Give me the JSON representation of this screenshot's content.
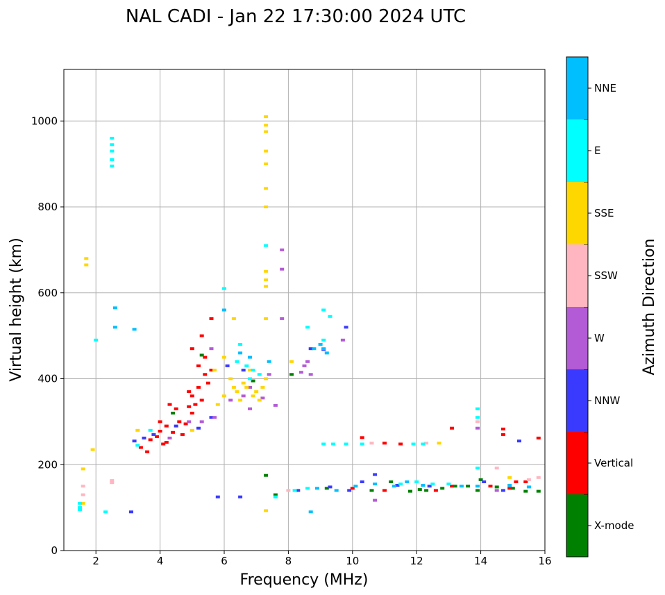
{
  "chart_data": {
    "type": "scatter",
    "title": "NAL CADI - Jan 22 17:30:00 2024 UTC",
    "xlabel": "Frequency (MHz)",
    "ylabel": "Virtual height (km)",
    "xlim": [
      1,
      16
    ],
    "ylim": [
      0,
      1120
    ],
    "xticks": [
      2,
      4,
      6,
      8,
      10,
      12,
      14,
      16
    ],
    "yticks": [
      0,
      200,
      400,
      600,
      800,
      1000
    ],
    "grid": true,
    "colorbar": {
      "label": "Azimuth Direction",
      "categories": [
        "X-mode",
        "Vertical",
        "NNW",
        "W",
        "SSW",
        "SSE",
        "E",
        "NNE"
      ],
      "colors": [
        "#008000",
        "#ff0000",
        "#3a3aff",
        "#b35ad6",
        "#ffb6c1",
        "#ffd700",
        "#00ffff",
        "#00bfff"
      ]
    },
    "series": [
      {
        "name": "X-mode",
        "points": [
          [
            7.6,
            130
          ],
          [
            9.2,
            145
          ],
          [
            10.6,
            140
          ],
          [
            11.2,
            160
          ],
          [
            11.8,
            138
          ],
          [
            12.3,
            140
          ],
          [
            12.8,
            145
          ],
          [
            13.2,
            150
          ],
          [
            13.6,
            150
          ],
          [
            14.0,
            165
          ],
          [
            14.5,
            148
          ],
          [
            15.0,
            145
          ],
          [
            15.4,
            138
          ],
          [
            15.8,
            138
          ],
          [
            7.3,
            175
          ],
          [
            8.1,
            410
          ],
          [
            6.9,
            395
          ],
          [
            5.3,
            455
          ],
          [
            4.4,
            320
          ],
          [
            12.1,
            142
          ],
          [
            13.9,
            140
          ]
        ]
      },
      {
        "name": "Vertical",
        "points": [
          [
            3.4,
            240
          ],
          [
            3.7,
            258
          ],
          [
            3.9,
            265
          ],
          [
            4.0,
            278
          ],
          [
            4.2,
            252
          ],
          [
            4.2,
            290
          ],
          [
            4.4,
            275
          ],
          [
            4.3,
            340
          ],
          [
            4.6,
            300
          ],
          [
            4.8,
            295
          ],
          [
            4.9,
            335
          ],
          [
            5.0,
            320
          ],
          [
            5.0,
            360
          ],
          [
            5.1,
            340
          ],
          [
            5.2,
            380
          ],
          [
            5.3,
            350
          ],
          [
            5.4,
            410
          ],
          [
            5.4,
            450
          ],
          [
            5.5,
            390
          ],
          [
            5.3,
            500
          ],
          [
            5.0,
            470
          ],
          [
            5.2,
            430
          ],
          [
            5.6,
            540
          ],
          [
            3.6,
            230
          ],
          [
            4.1,
            248
          ],
          [
            4.7,
            270
          ],
          [
            10.3,
            263
          ],
          [
            11.0,
            250
          ],
          [
            11.5,
            248
          ],
          [
            13.1,
            285
          ],
          [
            14.7,
            283
          ],
          [
            14.7,
            270
          ],
          [
            15.8,
            262
          ],
          [
            10.0,
            145
          ],
          [
            11.0,
            140
          ],
          [
            12.6,
            140
          ],
          [
            13.1,
            150
          ],
          [
            14.3,
            150
          ],
          [
            14.9,
            145
          ],
          [
            15.1,
            160
          ],
          [
            15.4,
            160
          ],
          [
            4.0,
            300
          ],
          [
            4.5,
            330
          ],
          [
            4.9,
            370
          ],
          [
            5.6,
            420
          ]
        ]
      },
      {
        "name": "NNW",
        "points": [
          [
            3.2,
            255
          ],
          [
            3.5,
            262
          ],
          [
            3.8,
            270
          ],
          [
            4.5,
            290
          ],
          [
            5.2,
            285
          ],
          [
            5.6,
            310
          ],
          [
            8.7,
            470
          ],
          [
            9.1,
            468
          ],
          [
            9.8,
            520
          ],
          [
            10.7,
            177
          ],
          [
            10.3,
            160
          ],
          [
            12.4,
            150
          ],
          [
            14.1,
            160
          ],
          [
            14.7,
            140
          ],
          [
            15.2,
            255
          ],
          [
            9.9,
            140
          ],
          [
            8.3,
            140
          ],
          [
            5.8,
            125
          ],
          [
            6.5,
            125
          ],
          [
            3.1,
            90
          ],
          [
            6.1,
            430
          ],
          [
            6.6,
            420
          ],
          [
            9.3,
            148
          ],
          [
            11.4,
            152
          ]
        ]
      },
      {
        "name": "W",
        "points": [
          [
            4.9,
            300
          ],
          [
            5.3,
            300
          ],
          [
            5.7,
            310
          ],
          [
            6.2,
            350
          ],
          [
            6.6,
            360
          ],
          [
            6.8,
            330
          ],
          [
            7.2,
            355
          ],
          [
            7.4,
            410
          ],
          [
            7.8,
            700
          ],
          [
            7.8,
            655
          ],
          [
            7.8,
            540
          ],
          [
            8.4,
            415
          ],
          [
            8.5,
            430
          ],
          [
            8.6,
            440
          ],
          [
            8.7,
            410
          ],
          [
            10.7,
            117
          ],
          [
            9.7,
            490
          ],
          [
            13.9,
            285
          ],
          [
            14.5,
            140
          ],
          [
            6.8,
            380
          ],
          [
            7.6,
            338
          ],
          [
            4.3,
            262
          ],
          [
            5.6,
            470
          ]
        ]
      },
      {
        "name": "SSW",
        "points": [
          [
            1.6,
            150
          ],
          [
            1.6,
            130
          ],
          [
            2.5,
            163
          ],
          [
            2.5,
            158
          ],
          [
            12.3,
            250
          ],
          [
            13.9,
            300
          ],
          [
            14.5,
            192
          ],
          [
            15.5,
            165
          ],
          [
            15.8,
            170
          ],
          [
            10.6,
            250
          ],
          [
            8.0,
            140
          ]
        ]
      },
      {
        "name": "SSE",
        "points": [
          [
            1.6,
            190
          ],
          [
            1.6,
            110
          ],
          [
            1.7,
            680
          ],
          [
            1.7,
            665
          ],
          [
            1.9,
            235
          ],
          [
            3.3,
            280
          ],
          [
            5.8,
            340
          ],
          [
            6.0,
            360
          ],
          [
            6.2,
            400
          ],
          [
            6.3,
            380
          ],
          [
            6.4,
            370
          ],
          [
            6.6,
            390
          ],
          [
            6.7,
            380
          ],
          [
            6.8,
            420
          ],
          [
            6.9,
            360
          ],
          [
            7.0,
            370
          ],
          [
            7.1,
            350
          ],
          [
            7.2,
            380
          ],
          [
            7.3,
            400
          ],
          [
            5.7,
            420
          ],
          [
            6.0,
            450
          ],
          [
            6.3,
            540
          ],
          [
            7.3,
            1010
          ],
          [
            7.3,
            990
          ],
          [
            7.3,
            975
          ],
          [
            7.3,
            930
          ],
          [
            7.3,
            900
          ],
          [
            7.3,
            843
          ],
          [
            7.3,
            800
          ],
          [
            7.3,
            650
          ],
          [
            7.3,
            630
          ],
          [
            7.3,
            615
          ],
          [
            7.3,
            540
          ],
          [
            7.3,
            93
          ],
          [
            8.1,
            440
          ],
          [
            12.7,
            250
          ],
          [
            14.9,
            170
          ],
          [
            5.0,
            280
          ],
          [
            6.5,
            350
          ]
        ]
      },
      {
        "name": "E",
        "points": [
          [
            1.5,
            110
          ],
          [
            1.5,
            100
          ],
          [
            1.5,
            95
          ],
          [
            2.0,
            490
          ],
          [
            2.3,
            90
          ],
          [
            2.5,
            960
          ],
          [
            2.5,
            945
          ],
          [
            2.5,
            930
          ],
          [
            2.5,
            910
          ],
          [
            2.5,
            895
          ],
          [
            3.3,
            245
          ],
          [
            3.7,
            280
          ],
          [
            6.0,
            610
          ],
          [
            6.4,
            440
          ],
          [
            6.5,
            480
          ],
          [
            6.7,
            430
          ],
          [
            6.8,
            400
          ],
          [
            6.9,
            420
          ],
          [
            7.1,
            410
          ],
          [
            9.1,
            248
          ],
          [
            9.4,
            248
          ],
          [
            9.8,
            248
          ],
          [
            10.3,
            248
          ],
          [
            11.9,
            248
          ],
          [
            12.2,
            248
          ],
          [
            8.6,
            520
          ],
          [
            9.1,
            560
          ],
          [
            9.3,
            545
          ],
          [
            9.1,
            490
          ],
          [
            12.0,
            160
          ],
          [
            12.5,
            155
          ],
          [
            13.0,
            155
          ],
          [
            13.9,
            192
          ],
          [
            13.9,
            310
          ],
          [
            13.9,
            330
          ],
          [
            7.3,
            710
          ],
          [
            7.6,
            125
          ],
          [
            8.2,
            140
          ],
          [
            8.6,
            145
          ],
          [
            11.5,
            155
          ]
        ]
      },
      {
        "name": "NNE",
        "points": [
          [
            3.2,
            515
          ],
          [
            6.0,
            560
          ],
          [
            6.5,
            460
          ],
          [
            6.8,
            450
          ],
          [
            7.4,
            440
          ],
          [
            8.8,
            470
          ],
          [
            9.0,
            480
          ],
          [
            9.1,
            470
          ],
          [
            9.2,
            460
          ],
          [
            8.9,
            145
          ],
          [
            9.5,
            140
          ],
          [
            10.1,
            150
          ],
          [
            10.7,
            155
          ],
          [
            11.3,
            150
          ],
          [
            11.7,
            160
          ],
          [
            12.2,
            152
          ],
          [
            13.4,
            150
          ],
          [
            13.9,
            150
          ],
          [
            8.7,
            90
          ],
          [
            2.6,
            520
          ],
          [
            2.6,
            565
          ],
          [
            14.9,
            152
          ],
          [
            15.5,
            148
          ]
        ]
      }
    ]
  }
}
